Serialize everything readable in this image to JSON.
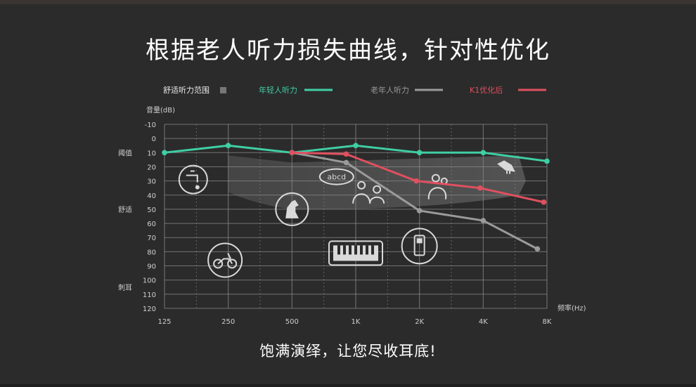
{
  "title": "根据老人听力损失曲线，针对性优化",
  "subtitle": "饱满演绎，让您尽收耳底!",
  "colors": {
    "background": "#2b2b2b",
    "grid": "#8a8a8a",
    "young": "#3fcfa4",
    "elderly": "#9a9a9a",
    "k1": "#e0505f",
    "comfort_zone": "#5a5a5a"
  },
  "chart_data": {
    "type": "line",
    "ylabel": "音量(dB)",
    "xlabel": "频率(Hz)",
    "categories": [
      "125",
      "250",
      "500",
      "1K",
      "2K",
      "4K",
      "8K"
    ],
    "y_ticks": [
      "-10",
      "0",
      "10",
      "20",
      "30",
      "40",
      "50",
      "60",
      "70",
      "80",
      "90",
      "100",
      "110",
      "120"
    ],
    "ylim": [
      -10,
      120
    ],
    "y_inverted": true,
    "y_region_labels": [
      {
        "label": "阈值",
        "y": 10
      },
      {
        "label": "舒适",
        "y": 50
      },
      {
        "label": "刺耳",
        "y": 105
      }
    ],
    "grid": true,
    "legend_position": "top",
    "series": [
      {
        "name": "年轻人听力",
        "color": "#3fcfa4",
        "points": [
          {
            "x": 0,
            "y": 10
          },
          {
            "x": 1,
            "y": 5
          },
          {
            "x": 2,
            "y": 10
          },
          {
            "x": 3,
            "y": 5
          },
          {
            "x": 4,
            "y": 10
          },
          {
            "x": 5,
            "y": 10
          },
          {
            "x": 6,
            "y": 16
          }
        ]
      },
      {
        "name": "老年人听力",
        "color": "#9a9a9a",
        "points": [
          {
            "x": 2,
            "y": 10
          },
          {
            "x": 2.85,
            "y": 17
          },
          {
            "x": 4,
            "y": 51
          },
          {
            "x": 5,
            "y": 58
          },
          {
            "x": 5.85,
            "y": 78
          }
        ]
      },
      {
        "name": "K1优化后",
        "color": "#e0505f",
        "points": [
          {
            "x": 2,
            "y": 10
          },
          {
            "x": 2.85,
            "y": 11
          },
          {
            "x": 3.95,
            "y": 30
          },
          {
            "x": 4.95,
            "y": 35
          },
          {
            "x": 5.95,
            "y": 45
          }
        ]
      }
    ],
    "comfort_zone": {
      "name": "舒适听力范围",
      "color": "#5a5a5a",
      "upper": [
        [
          1,
          10
        ],
        [
          6,
          10
        ]
      ],
      "lower": [
        [
          1,
          40
        ],
        [
          6,
          40
        ]
      ]
    },
    "icons": [
      {
        "name": "faucet-icon",
        "x": 0.45,
        "y": 29
      },
      {
        "name": "scooter-icon",
        "x": 0.95,
        "y": 86
      },
      {
        "name": "dog-icon",
        "x": 2.0,
        "y": 50
      },
      {
        "name": "speech-abcd-icon",
        "x": 2.7,
        "y": 27
      },
      {
        "name": "people-talking-icon",
        "x": 3.2,
        "y": 38
      },
      {
        "name": "piano-keyboard-icon",
        "x": 3.0,
        "y": 81
      },
      {
        "name": "mobile-phone-icon",
        "x": 4.0,
        "y": 76
      },
      {
        "name": "mother-child-icon",
        "x": 4.3,
        "y": 35
      },
      {
        "name": "bird-icon",
        "x": 5.35,
        "y": 20
      }
    ],
    "speech_bubble_text": "abcd"
  }
}
